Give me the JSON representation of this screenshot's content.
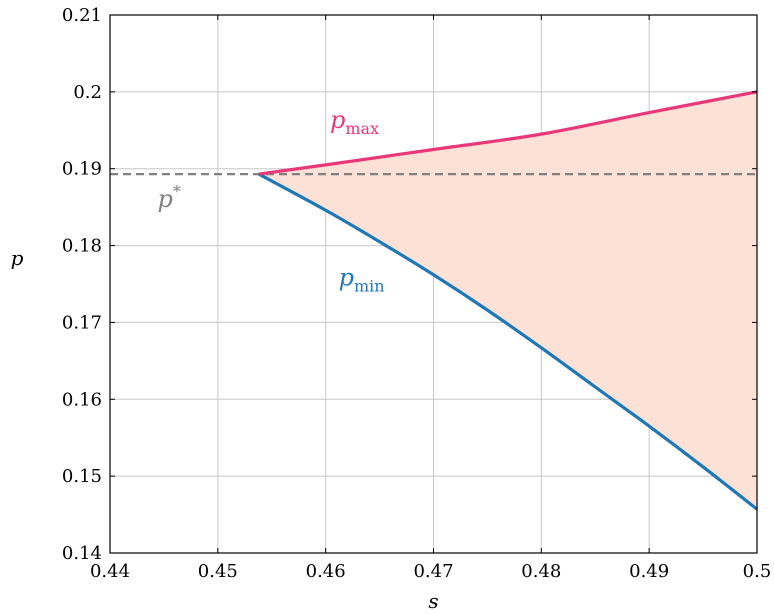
{
  "chart_data": {
    "type": "line",
    "xlabel": "s",
    "ylabel": "p",
    "xlim": [
      0.44,
      0.5
    ],
    "ylim": [
      0.14,
      0.21
    ],
    "xticks": [
      "0.44",
      "0.45",
      "0.46",
      "0.47",
      "0.48",
      "0.49",
      "0.5"
    ],
    "yticks": [
      "0.14",
      "0.15",
      "0.16",
      "0.17",
      "0.18",
      "0.19",
      "0.2",
      "0.21"
    ],
    "grid": true,
    "legend": "none",
    "series": [
      {
        "name": "p_max",
        "label_base": "p",
        "label_sub": "max",
        "color": "#e8387a",
        "x": [
          0.4538,
          0.46,
          0.47,
          0.48,
          0.49,
          0.5
        ],
        "y": [
          0.1893,
          0.1905,
          0.1925,
          0.1945,
          0.1973,
          0.2
        ]
      },
      {
        "name": "p_min",
        "label_base": "p",
        "label_sub": "min",
        "color": "#1f78b4",
        "x": [
          0.4538,
          0.46,
          0.465,
          0.47,
          0.475,
          0.48,
          0.485,
          0.49,
          0.495,
          0.5
        ],
        "y": [
          0.1893,
          0.1846,
          0.1805,
          0.1762,
          0.1716,
          0.1667,
          0.1616,
          0.1565,
          0.1512,
          0.1457
        ]
      }
    ],
    "reference_line": {
      "name": "p*",
      "label_base": "p",
      "label_sup": "*",
      "y": 0.1893,
      "color": "#808080",
      "style": "dashed"
    },
    "fill_between": {
      "upper": "p_max",
      "lower": "p_min",
      "color": "#fbe1d6"
    }
  }
}
